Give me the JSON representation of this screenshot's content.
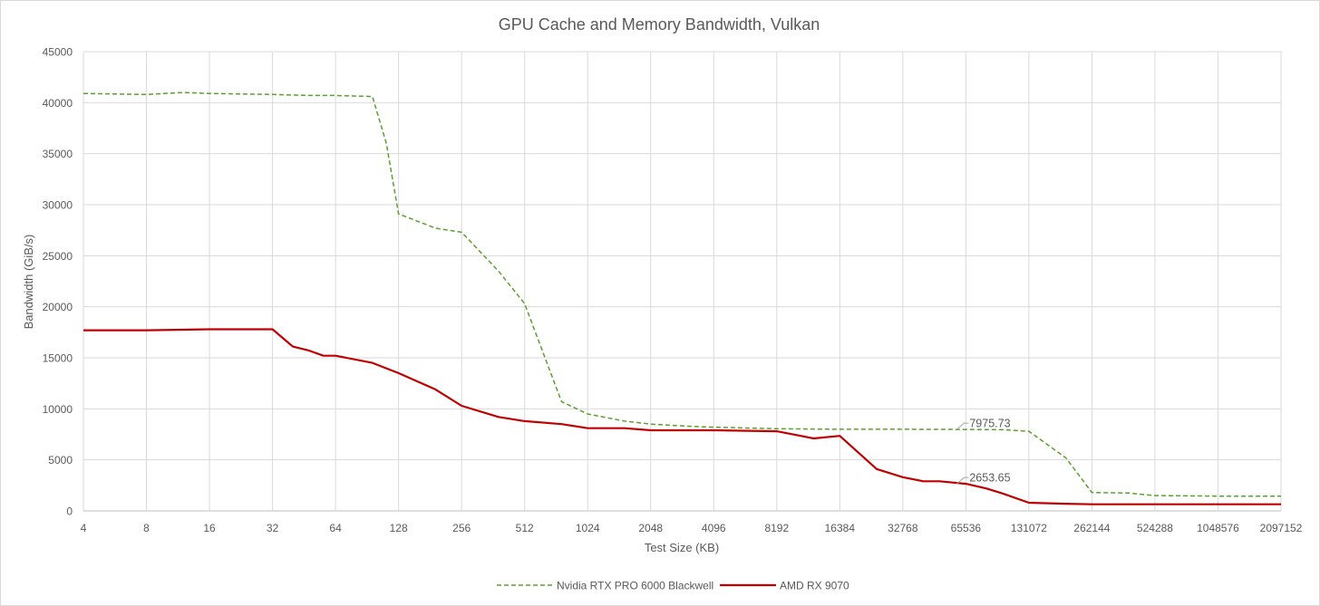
{
  "chart_data": {
    "type": "line",
    "title": "GPU Cache and Memory Bandwidth, Vulkan",
    "xlabel": "Test Size (KB)",
    "ylabel": "Bandwidth (GiB/s)",
    "x_scale": "log2",
    "x_ticks": [
      4,
      8,
      16,
      32,
      64,
      128,
      256,
      512,
      1024,
      2048,
      4096,
      8192,
      16384,
      32768,
      65536,
      131072,
      262144,
      524288,
      1048576,
      2097152
    ],
    "y_ticks": [
      0,
      5000,
      10000,
      15000,
      20000,
      25000,
      30000,
      35000,
      40000,
      45000
    ],
    "ylim": [
      0,
      45000
    ],
    "grid": true,
    "legend_position": "bottom",
    "series": [
      {
        "name": "Nvidia RTX PRO 6000 Blackwell",
        "color": "#5aa02c",
        "style": "dashed",
        "x": [
          4,
          8,
          12,
          16,
          32,
          48,
          64,
          96,
          112,
          128,
          192,
          256,
          384,
          512,
          768,
          1024,
          1536,
          2048,
          3072,
          4096,
          8192,
          16384,
          32768,
          65536,
          98304,
          131072,
          196608,
          262144,
          393216,
          524288,
          1048576,
          2097152
        ],
        "y": [
          40900,
          40800,
          41000,
          40900,
          40800,
          40700,
          40700,
          40600,
          36000,
          29100,
          27700,
          27300,
          23500,
          20300,
          10700,
          9500,
          8800,
          8500,
          8300,
          8200,
          8050,
          8000,
          8000,
          7975.73,
          7950,
          7800,
          5200,
          1800,
          1750,
          1500,
          1450,
          1450
        ]
      },
      {
        "name": "AMD RX 9070",
        "color": "#c00000",
        "style": "solid",
        "x": [
          4,
          8,
          16,
          32,
          40,
          48,
          56,
          64,
          96,
          128,
          192,
          256,
          384,
          512,
          768,
          1024,
          1536,
          2048,
          3072,
          4096,
          8192,
          12288,
          16384,
          24576,
          32768,
          40960,
          49152,
          65536,
          81920,
          98304,
          131072,
          196608,
          262144,
          524288,
          1048576,
          2097152
        ],
        "y": [
          17700,
          17700,
          17800,
          17800,
          16100,
          15700,
          15200,
          15200,
          14500,
          13500,
          11900,
          10300,
          9200,
          8800,
          8500,
          8100,
          8100,
          7900,
          7900,
          7900,
          7800,
          7100,
          7350,
          4100,
          3300,
          2900,
          2900,
          2653.65,
          2200,
          1700,
          800,
          700,
          650,
          650,
          650,
          650
        ]
      }
    ],
    "annotations": [
      {
        "series": "Nvidia RTX PRO 6000 Blackwell",
        "x": 65536,
        "y": 7975.73,
        "label": "7975.73"
      },
      {
        "series": "AMD RX 9070",
        "x": 65536,
        "y": 2653.65,
        "label": "2653.65"
      }
    ]
  }
}
